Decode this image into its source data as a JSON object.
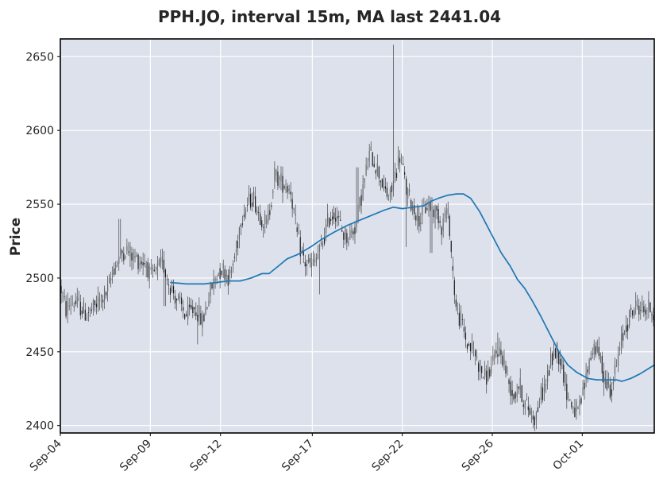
{
  "chart_data": {
    "type": "candlestick",
    "title": "PPH.JO, interval 15m, MA last 2441.04",
    "ylabel": "Price",
    "xlabel": "",
    "ylim": [
      2395,
      2662
    ],
    "yticks": [
      2400,
      2450,
      2500,
      2550,
      2600,
      2650
    ],
    "xlim_days": [
      4.0,
      37.0
    ],
    "xticks": [
      {
        "label": "Sep-04",
        "day": 4.0
      },
      {
        "label": "Sep-09",
        "day": 9.0
      },
      {
        "label": "Sep-12",
        "day": 12.9
      },
      {
        "label": "Sep-17",
        "day": 18.0
      },
      {
        "label": "Sep-22",
        "day": 23.0
      },
      {
        "label": "Sep-26",
        "day": 28.0
      },
      {
        "label": "Oct-01",
        "day": 33.0
      }
    ],
    "grid": true,
    "colors": {
      "plot_background": "#dce1ec",
      "grid": "#ffffff",
      "candles": "#2a2a2a",
      "ma_line": "#1f77b4",
      "text": "#262626"
    },
    "price_path": [
      [
        4.0,
        2495
      ],
      [
        4.3,
        2478
      ],
      [
        4.6,
        2484
      ],
      [
        5.0,
        2482
      ],
      [
        5.4,
        2476
      ],
      [
        5.8,
        2478
      ],
      [
        6.2,
        2485
      ],
      [
        6.6,
        2490
      ],
      [
        7.0,
        2508
      ],
      [
        7.3,
        2515
      ],
      [
        7.6,
        2520
      ],
      [
        8.0,
        2515
      ],
      [
        8.4,
        2512
      ],
      [
        8.8,
        2510
      ],
      [
        9.0,
        2500
      ],
      [
        9.3,
        2504
      ],
      [
        9.7,
        2510
      ],
      [
        10.0,
        2498
      ],
      [
        10.5,
        2485
      ],
      [
        11.0,
        2474
      ],
      [
        11.5,
        2480
      ],
      [
        11.9,
        2470
      ],
      [
        12.3,
        2490
      ],
      [
        12.7,
        2503
      ],
      [
        13.0,
        2507
      ],
      [
        13.4,
        2500
      ],
      [
        13.8,
        2520
      ],
      [
        14.0,
        2540
      ],
      [
        14.4,
        2550
      ],
      [
        14.7,
        2556
      ],
      [
        15.0,
        2545
      ],
      [
        15.5,
        2535
      ],
      [
        15.9,
        2570
      ],
      [
        16.3,
        2565
      ],
      [
        16.8,
        2560
      ],
      [
        17.2,
        2525
      ],
      [
        17.6,
        2510
      ],
      [
        18.0,
        2508
      ],
      [
        18.5,
        2520
      ],
      [
        18.9,
        2540
      ],
      [
        19.3,
        2545
      ],
      [
        19.7,
        2530
      ],
      [
        20.0,
        2528
      ],
      [
        20.4,
        2535
      ],
      [
        20.8,
        2560
      ],
      [
        21.2,
        2585
      ],
      [
        21.6,
        2575
      ],
      [
        22.0,
        2560
      ],
      [
        22.3,
        2553
      ],
      [
        22.6,
        2570
      ],
      [
        22.9,
        2585
      ],
      [
        23.2,
        2560
      ],
      [
        23.6,
        2548
      ],
      [
        24.0,
        2540
      ],
      [
        24.4,
        2550
      ],
      [
        24.8,
        2545
      ],
      [
        25.0,
        2543
      ],
      [
        25.2,
        2535
      ],
      [
        25.4,
        2545
      ],
      [
        25.6,
        2540
      ],
      [
        25.75,
        2512
      ],
      [
        26.0,
        2478
      ],
      [
        26.3,
        2470
      ],
      [
        26.6,
        2455
      ],
      [
        27.0,
        2450
      ],
      [
        27.3,
        2440
      ],
      [
        27.6,
        2432
      ],
      [
        28.0,
        2440
      ],
      [
        28.3,
        2452
      ],
      [
        28.6,
        2446
      ],
      [
        28.9,
        2430
      ],
      [
        29.2,
        2420
      ],
      [
        29.5,
        2428
      ],
      [
        29.8,
        2415
      ],
      [
        30.1,
        2410
      ],
      [
        30.4,
        2405
      ],
      [
        30.7,
        2420
      ],
      [
        31.0,
        2430
      ],
      [
        31.3,
        2445
      ],
      [
        31.6,
        2452
      ],
      [
        31.9,
        2440
      ],
      [
        32.2,
        2420
      ],
      [
        32.5,
        2412
      ],
      [
        32.8,
        2408
      ],
      [
        33.1,
        2425
      ],
      [
        33.4,
        2445
      ],
      [
        33.7,
        2455
      ],
      [
        34.0,
        2445
      ],
      [
        34.3,
        2430
      ],
      [
        34.6,
        2425
      ],
      [
        34.9,
        2440
      ],
      [
        35.2,
        2458
      ],
      [
        35.5,
        2470
      ],
      [
        35.8,
        2478
      ],
      [
        36.1,
        2482
      ],
      [
        36.4,
        2478
      ],
      [
        36.7,
        2480
      ],
      [
        37.0,
        2476
      ]
    ],
    "spikes": [
      {
        "day": 7.3,
        "high": 2540
      },
      {
        "day": 9.8,
        "low": 2481
      },
      {
        "day": 11.6,
        "low": 2455
      },
      {
        "day": 18.4,
        "low": 2489
      },
      {
        "day": 20.5,
        "high": 2575
      },
      {
        "day": 22.5,
        "high": 2658
      },
      {
        "day": 23.2,
        "low": 2521
      },
      {
        "day": 24.6,
        "low": 2517
      },
      {
        "day": 28.3,
        "high": 2463
      },
      {
        "day": 30.3,
        "low": 2398
      },
      {
        "day": 34.2,
        "low": 2420
      }
    ],
    "moving_average": [
      [
        10.1,
        2497
      ],
      [
        11.0,
        2496
      ],
      [
        12.0,
        2496
      ],
      [
        12.7,
        2497
      ],
      [
        13.3,
        2498
      ],
      [
        14.0,
        2498
      ],
      [
        14.6,
        2500
      ],
      [
        15.2,
        2503
      ],
      [
        15.6,
        2503
      ],
      [
        16.1,
        2508
      ],
      [
        16.6,
        2513
      ],
      [
        17.2,
        2516
      ],
      [
        17.9,
        2521
      ],
      [
        18.5,
        2526
      ],
      [
        19.2,
        2531
      ],
      [
        20.0,
        2536
      ],
      [
        21.0,
        2541
      ],
      [
        22.0,
        2546
      ],
      [
        22.5,
        2548
      ],
      [
        23.0,
        2547
      ],
      [
        23.6,
        2548
      ],
      [
        24.2,
        2549
      ],
      [
        24.6,
        2552
      ],
      [
        25.0,
        2554
      ],
      [
        25.5,
        2556
      ],
      [
        26.0,
        2557
      ],
      [
        26.4,
        2557
      ],
      [
        26.8,
        2554
      ],
      [
        27.3,
        2545
      ],
      [
        27.9,
        2531
      ],
      [
        28.5,
        2517
      ],
      [
        29.0,
        2508
      ],
      [
        29.4,
        2499
      ],
      [
        29.8,
        2493
      ],
      [
        30.2,
        2485
      ],
      [
        30.7,
        2474
      ],
      [
        31.2,
        2462
      ],
      [
        31.7,
        2450
      ],
      [
        32.2,
        2441
      ],
      [
        32.7,
        2436
      ],
      [
        33.3,
        2432
      ],
      [
        33.8,
        2431
      ],
      [
        34.4,
        2431
      ],
      [
        34.9,
        2431
      ],
      [
        35.2,
        2430
      ],
      [
        35.7,
        2432
      ],
      [
        36.2,
        2435
      ],
      [
        36.6,
        2438
      ],
      [
        37.0,
        2441
      ]
    ]
  }
}
